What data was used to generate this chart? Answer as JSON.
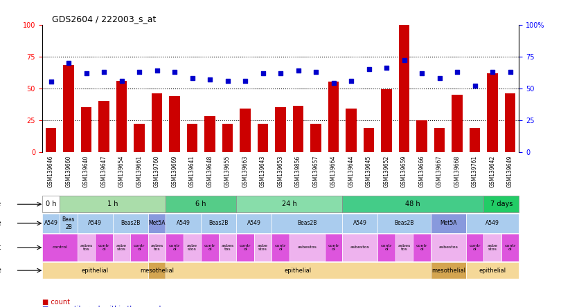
{
  "title": "GDS2604 / 222003_s_at",
  "samples": [
    "GSM139646",
    "GSM139660",
    "GSM139640",
    "GSM139647",
    "GSM139654",
    "GSM139661",
    "GSM139760",
    "GSM139669",
    "GSM139641",
    "GSM139648",
    "GSM139655",
    "GSM139663",
    "GSM139643",
    "GSM139653",
    "GSM139856",
    "GSM139657",
    "GSM139664",
    "GSM139644",
    "GSM139645",
    "GSM139652",
    "GSM139659",
    "GSM139666",
    "GSM139667",
    "GSM139668",
    "GSM139761",
    "GSM139642",
    "GSM139649"
  ],
  "counts": [
    19,
    68,
    35,
    40,
    56,
    22,
    46,
    44,
    22,
    28,
    22,
    34,
    22,
    35,
    36,
    22,
    55,
    34,
    19,
    49,
    100,
    25,
    19,
    45,
    19,
    62,
    46
  ],
  "percentile": [
    55,
    70,
    62,
    63,
    56,
    63,
    64,
    63,
    58,
    57,
    56,
    56,
    62,
    62,
    64,
    63,
    54,
    56,
    65,
    66,
    72,
    62,
    58,
    63,
    52,
    63,
    63
  ],
  "time_groups": [
    {
      "label": "0 h",
      "start": 0,
      "end": 1,
      "color": "#ffffff"
    },
    {
      "label": "1 h",
      "start": 1,
      "end": 7,
      "color": "#aaddaa"
    },
    {
      "label": "6 h",
      "start": 7,
      "end": 11,
      "color": "#55cc88"
    },
    {
      "label": "24 h",
      "start": 11,
      "end": 17,
      "color": "#88ddaa"
    },
    {
      "label": "48 h",
      "start": 17,
      "end": 25,
      "color": "#44cc88"
    },
    {
      "label": "7 days",
      "start": 25,
      "end": 27,
      "color": "#22cc66"
    }
  ],
  "cell_line_groups": [
    {
      "label": "A549",
      "start": 0,
      "end": 1,
      "is_met": false
    },
    {
      "label": "Beas\n2B",
      "start": 1,
      "end": 2,
      "is_met": false
    },
    {
      "label": "A549",
      "start": 2,
      "end": 4,
      "is_met": false
    },
    {
      "label": "Beas2B",
      "start": 4,
      "end": 6,
      "is_met": false
    },
    {
      "label": "Met5A",
      "start": 6,
      "end": 7,
      "is_met": true
    },
    {
      "label": "A549",
      "start": 7,
      "end": 9,
      "is_met": false
    },
    {
      "label": "Beas2B",
      "start": 9,
      "end": 11,
      "is_met": false
    },
    {
      "label": "A549",
      "start": 11,
      "end": 13,
      "is_met": false
    },
    {
      "label": "Beas2B",
      "start": 13,
      "end": 17,
      "is_met": false
    },
    {
      "label": "A549",
      "start": 17,
      "end": 19,
      "is_met": false
    },
    {
      "label": "Beas2B",
      "start": 19,
      "end": 22,
      "is_met": false
    },
    {
      "label": "Met5A",
      "start": 22,
      "end": 24,
      "is_met": true
    },
    {
      "label": "A549",
      "start": 24,
      "end": 27,
      "is_met": false
    }
  ],
  "agent_groups": [
    {
      "label": "control",
      "start": 0,
      "end": 2,
      "is_control": true
    },
    {
      "label": "asbes\ntos",
      "start": 2,
      "end": 3,
      "is_control": false
    },
    {
      "label": "contr\nol",
      "start": 3,
      "end": 4,
      "is_control": true
    },
    {
      "label": "asbe\nstos",
      "start": 4,
      "end": 5,
      "is_control": false
    },
    {
      "label": "contr\nol",
      "start": 5,
      "end": 6,
      "is_control": true
    },
    {
      "label": "asbes\ntos",
      "start": 6,
      "end": 7,
      "is_control": false
    },
    {
      "label": "contr\nol",
      "start": 7,
      "end": 8,
      "is_control": true
    },
    {
      "label": "asbe\nstos",
      "start": 8,
      "end": 9,
      "is_control": false
    },
    {
      "label": "contr\nol",
      "start": 9,
      "end": 10,
      "is_control": true
    },
    {
      "label": "asbes\ntos",
      "start": 10,
      "end": 11,
      "is_control": false
    },
    {
      "label": "contr\nol",
      "start": 11,
      "end": 12,
      "is_control": true
    },
    {
      "label": "asbe\nstos",
      "start": 12,
      "end": 13,
      "is_control": false
    },
    {
      "label": "contr\nol",
      "start": 13,
      "end": 14,
      "is_control": true
    },
    {
      "label": "asbestos",
      "start": 14,
      "end": 16,
      "is_control": false
    },
    {
      "label": "contr\nol",
      "start": 16,
      "end": 17,
      "is_control": true
    },
    {
      "label": "asbestos",
      "start": 17,
      "end": 19,
      "is_control": false
    },
    {
      "label": "contr\nol",
      "start": 19,
      "end": 20,
      "is_control": true
    },
    {
      "label": "asbes\ntos",
      "start": 20,
      "end": 21,
      "is_control": false
    },
    {
      "label": "contr\nol",
      "start": 21,
      "end": 22,
      "is_control": true
    },
    {
      "label": "asbestos",
      "start": 22,
      "end": 24,
      "is_control": false
    },
    {
      "label": "contr\nol",
      "start": 24,
      "end": 25,
      "is_control": true
    },
    {
      "label": "asbe\nstos",
      "start": 25,
      "end": 26,
      "is_control": false
    },
    {
      "label": "contr\nol",
      "start": 26,
      "end": 27,
      "is_control": true
    }
  ],
  "cell_type_groups": [
    {
      "label": "epithelial",
      "start": 0,
      "end": 6,
      "is_meso": false
    },
    {
      "label": "mesothelial",
      "start": 6,
      "end": 7,
      "is_meso": true
    },
    {
      "label": "epithelial",
      "start": 7,
      "end": 22,
      "is_meso": false
    },
    {
      "label": "mesothelial",
      "start": 22,
      "end": 24,
      "is_meso": true
    },
    {
      "label": "epithelial",
      "start": 24,
      "end": 27,
      "is_meso": false
    }
  ],
  "bar_color": "#cc0000",
  "dot_color": "#0000cc",
  "cell_line_color_normal": "#aaccee",
  "cell_line_color_met": "#8899dd",
  "agent_color_control": "#dd55dd",
  "agent_color_asbestos": "#eeb3ee",
  "cell_type_color_epi": "#f5d898",
  "cell_type_color_meso": "#d4a550",
  "label_row_bg": "#d8d8d8"
}
